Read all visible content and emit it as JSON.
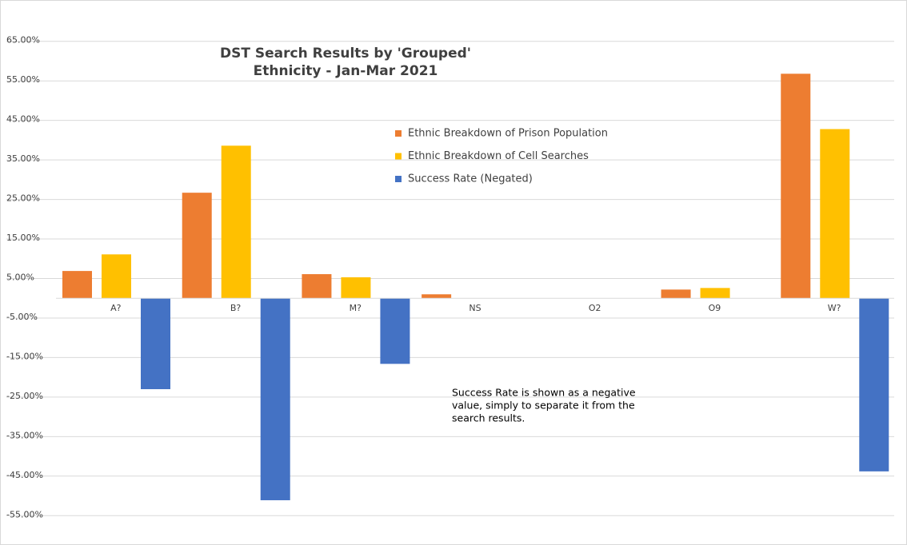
{
  "chart_data": {
    "type": "bar",
    "title": [
      "DST Search Results by 'Grouped'",
      "Ethnicity - Jan-Mar 2021"
    ],
    "categories": [
      "A?",
      "B?",
      "M?",
      "NS",
      "O2",
      "O9",
      "W?"
    ],
    "series": [
      {
        "name": "Ethnic Breakdown of Prison Population",
        "color": "#ed7d31",
        "values": [
          6.9,
          26.7,
          6.1,
          1.0,
          0,
          2.2,
          56.8
        ]
      },
      {
        "name": "Ethnic Breakdown of Cell Searches",
        "color": "#ffc000",
        "values": [
          11.1,
          38.6,
          5.3,
          0,
          0,
          2.6,
          42.8
        ]
      },
      {
        "name": "Success Rate (Negated)",
        "color": "#4472c4",
        "values": [
          -23.0,
          -51.1,
          -16.6,
          0,
          0,
          0,
          -43.8
        ]
      }
    ],
    "ylim": [
      -60,
      70
    ],
    "yticks": [
      {
        "value": 65,
        "label": "65.00%"
      },
      {
        "value": 55,
        "label": "55.00%"
      },
      {
        "value": 45,
        "label": "45.00%"
      },
      {
        "value": 35,
        "label": "35.00%"
      },
      {
        "value": 25,
        "label": "25.00%"
      },
      {
        "value": 15,
        "label": "15.00%"
      },
      {
        "value": 5,
        "label": "5.00%"
      },
      {
        "value": -5,
        "label": "-5.00%"
      },
      {
        "value": -15,
        "label": "-15.00%"
      },
      {
        "value": -25,
        "label": "-25.00%"
      },
      {
        "value": -35,
        "label": "-35.00%"
      },
      {
        "value": -45,
        "label": "-45.00%"
      },
      {
        "value": -55,
        "label": "-55.00%"
      }
    ],
    "grid": true,
    "annotation": [
      "Success Rate is shown as a negative",
      "value, simply to separate it from the",
      "search results."
    ]
  }
}
